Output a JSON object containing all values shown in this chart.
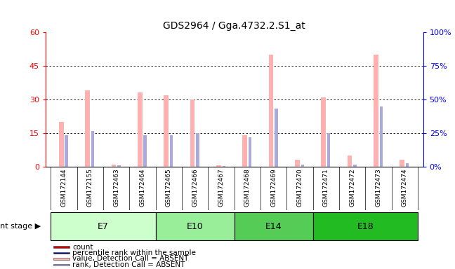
{
  "title": "GDS2964 / Gga.4732.2.S1_at",
  "samples": [
    "GSM172144",
    "GSM172155",
    "GSM172463",
    "GSM172464",
    "GSM172465",
    "GSM172466",
    "GSM172467",
    "GSM172468",
    "GSM172469",
    "GSM172470",
    "GSM172471",
    "GSM172472",
    "GSM172473",
    "GSM172474"
  ],
  "stages": [
    {
      "label": "E7",
      "start": 0,
      "end": 3,
      "color": "#ccffcc"
    },
    {
      "label": "E10",
      "start": 4,
      "end": 6,
      "color": "#88ee88"
    },
    {
      "label": "E14",
      "start": 7,
      "end": 9,
      "color": "#44cc44"
    },
    {
      "label": "E18",
      "start": 10,
      "end": 13,
      "color": "#22bb22"
    }
  ],
  "pink_values": [
    20,
    34,
    1,
    33,
    32,
    30,
    0.5,
    14,
    50,
    3,
    31,
    5,
    50,
    3
  ],
  "blue_values": [
    14,
    16,
    0.8,
    14,
    14,
    15,
    0.3,
    13,
    26,
    1,
    15,
    1,
    27,
    1.5
  ],
  "left_ylim": [
    0,
    60
  ],
  "right_ylim": [
    0,
    100
  ],
  "left_yticks": [
    0,
    15,
    30,
    45,
    60
  ],
  "right_yticks": [
    0,
    25,
    50,
    75,
    100
  ],
  "left_yticklabels": [
    "0",
    "15",
    "30",
    "45",
    "60"
  ],
  "right_yticklabels": [
    "0%",
    "25%",
    "50%",
    "75%",
    "100%"
  ],
  "grid_values": [
    15,
    30,
    45
  ],
  "pink_color": "#ffb0b0",
  "blue_color": "#aaaadd",
  "red_color": "#cc0000",
  "dark_blue_color": "#000088",
  "legend_items": [
    {
      "color": "#cc0000",
      "label": "count"
    },
    {
      "color": "#000088",
      "label": "percentile rank within the sample"
    },
    {
      "color": "#ffb0b0",
      "label": "value, Detection Call = ABSENT"
    },
    {
      "color": "#aaaadd",
      "label": "rank, Detection Call = ABSENT"
    }
  ]
}
